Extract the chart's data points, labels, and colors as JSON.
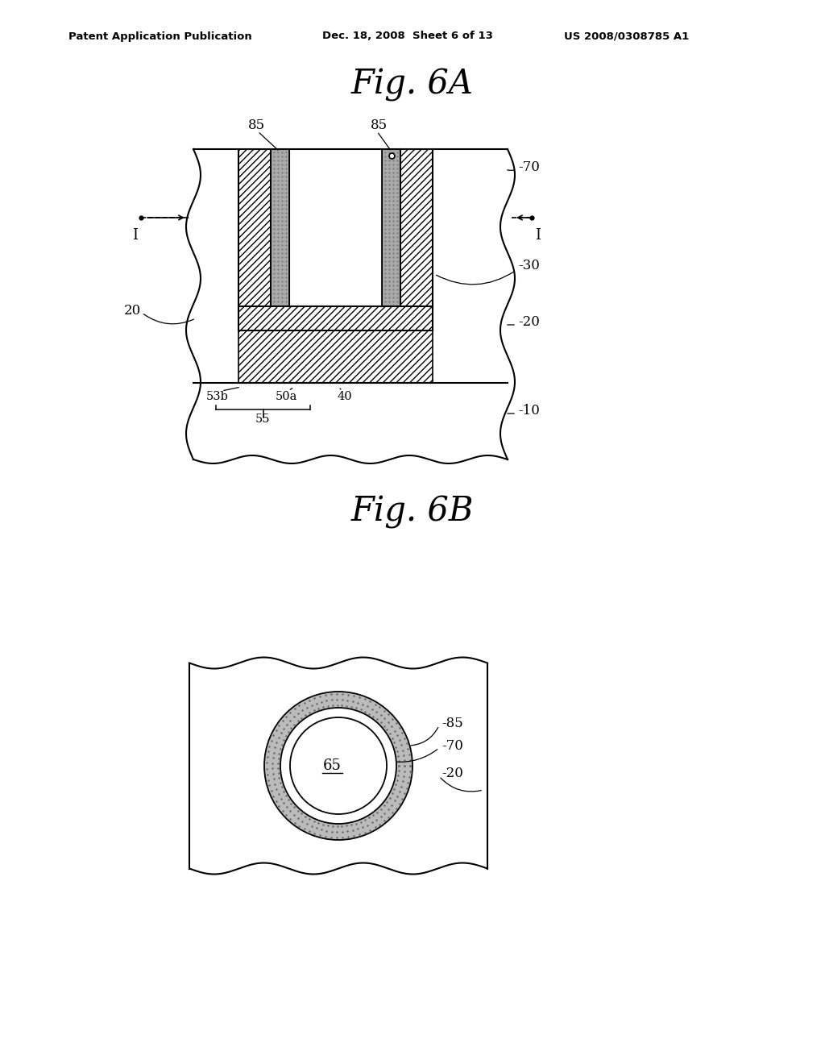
{
  "header_left": "Patent Application Publication",
  "header_middle": "Dec. 18, 2008  Sheet 6 of 13",
  "header_right": "US 2008/0308785 A1",
  "fig6a_title": "Fig. 6A",
  "fig6b_title": "Fig. 6B",
  "bg_color": "#ffffff",
  "line_color": "#000000"
}
